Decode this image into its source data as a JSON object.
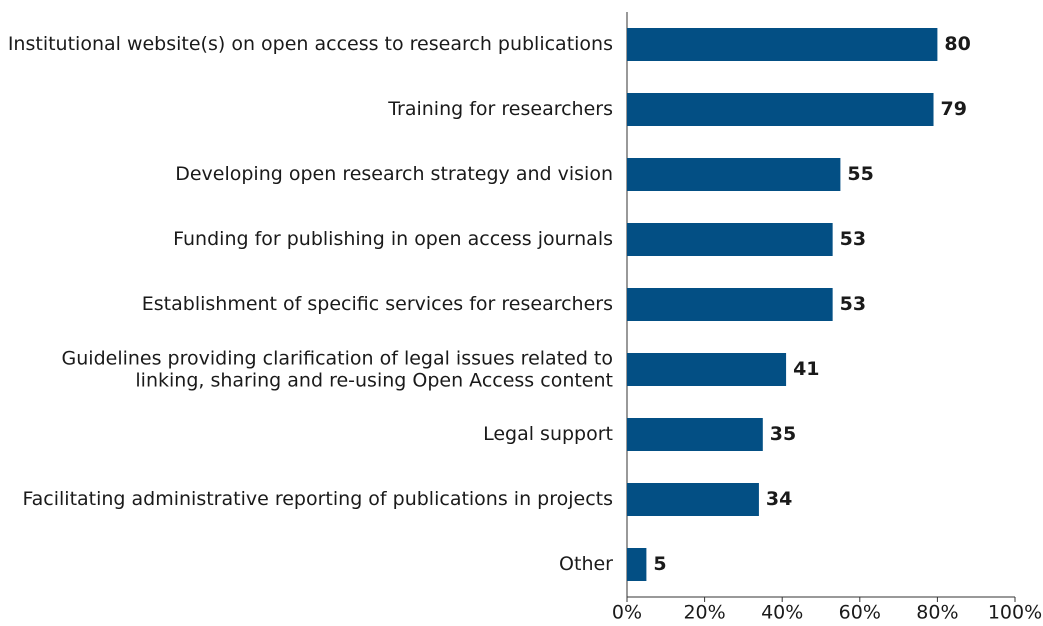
{
  "chart_data": {
    "type": "barh",
    "categories": [
      "Institutional website(s) on open access to research publications",
      "Training for researchers",
      "Developing open research strategy and vision",
      "Funding for publishing in open access journals",
      "Establishment of specific services for researchers",
      "Guidelines providing clarification of legal issues related to\nlinking, sharing and re-using Open Access content",
      "Legal support",
      "Facilitating administrative reporting of publications in projects",
      "Other"
    ],
    "values": [
      80,
      79,
      55,
      53,
      53,
      41,
      35,
      34,
      5
    ],
    "color": "#034f84",
    "xlim": [
      0,
      100
    ],
    "xticks": [
      {
        "value": 0,
        "label": "0%"
      },
      {
        "value": 20,
        "label": "20%"
      },
      {
        "value": 40,
        "label": "40%"
      },
      {
        "value": 60,
        "label": "60%"
      },
      {
        "value": 80,
        "label": "80%"
      },
      {
        "value": 100,
        "label": "100%"
      }
    ]
  }
}
